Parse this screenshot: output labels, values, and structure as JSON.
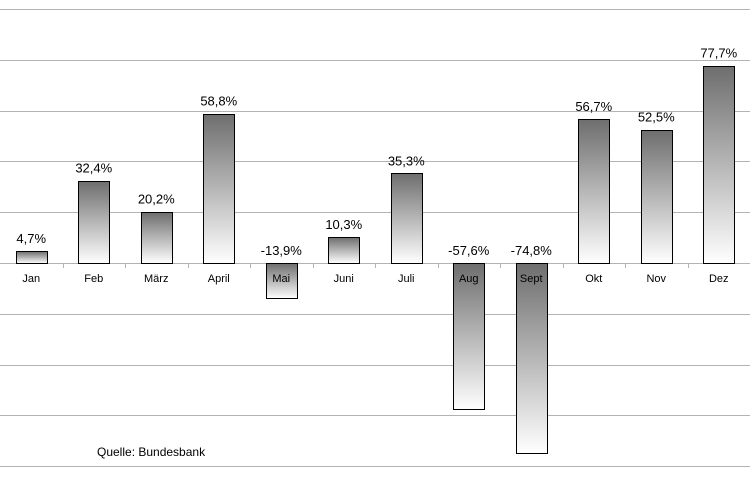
{
  "chart_data": {
    "type": "bar",
    "categories": [
      "Jan",
      "Feb",
      "März",
      "April",
      "Mai",
      "Juni",
      "Juli",
      "Aug",
      "Sept",
      "Okt",
      "Nov",
      "Dez"
    ],
    "values": [
      4.7,
      32.4,
      20.2,
      58.8,
      -13.9,
      10.3,
      35.3,
      -57.6,
      -74.8,
      56.7,
      52.5,
      77.7
    ],
    "value_labels": [
      "4,7%",
      "32,4%",
      "20,2%",
      "58,8%",
      "-13,9%",
      "10,3%",
      "35,3%",
      "-57,6%",
      "-74,8%",
      "56,7%",
      "52,5%",
      "77,7%"
    ],
    "title": "",
    "xlabel": "",
    "ylabel": "",
    "ylim": [
      -100,
      100
    ],
    "grid": true,
    "bar_fill": "gradient dark gray to white",
    "source": "Quelle: Bundesbank"
  }
}
